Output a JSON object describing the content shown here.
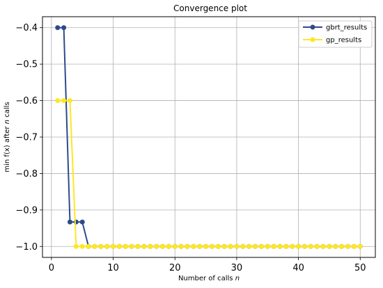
{
  "chart_data": {
    "type": "line",
    "title": "Convergence plot",
    "xlabel_prefix": "Number of calls ",
    "xlabel_italic": "n",
    "ylabel_prefix": "min f(x) after ",
    "ylabel_italic": "n",
    "ylabel_suffix": " calls",
    "xlim": [
      -1.45,
      52.45
    ],
    "ylim": [
      -1.03,
      -0.37
    ],
    "xticks": [
      0,
      10,
      20,
      30,
      40,
      50
    ],
    "xtick_labels": [
      "0",
      "10",
      "20",
      "30",
      "40",
      "50"
    ],
    "yticks": [
      -1.0,
      -0.9,
      -0.8,
      -0.7,
      -0.6,
      -0.5,
      -0.4
    ],
    "ytick_labels": [
      "−1.0",
      "−0.9",
      "−0.8",
      "−0.7",
      "−0.6",
      "−0.5",
      "−0.4"
    ],
    "grid": true,
    "legend_position": "top-right",
    "series": [
      {
        "name": "gbrt_results",
        "color": "#2f4a8a",
        "x": [
          1,
          2,
          3,
          4,
          5,
          6,
          7,
          8,
          9,
          10,
          11,
          12,
          13,
          14,
          15,
          16,
          17,
          18,
          19,
          20,
          21,
          22,
          23,
          24,
          25,
          26,
          27,
          28,
          29,
          30,
          31,
          32,
          33,
          34,
          35,
          36,
          37,
          38,
          39,
          40,
          41,
          42,
          43,
          44,
          45,
          46,
          47,
          48,
          49,
          50
        ],
        "y": [
          -0.4,
          -0.4,
          -0.933,
          -0.933,
          -0.933,
          -1.0,
          -1.0,
          -1.0,
          -1.0,
          -1.0,
          -1.0,
          -1.0,
          -1.0,
          -1.0,
          -1.0,
          -1.0,
          -1.0,
          -1.0,
          -1.0,
          -1.0,
          -1.0,
          -1.0,
          -1.0,
          -1.0,
          -1.0,
          -1.0,
          -1.0,
          -1.0,
          -1.0,
          -1.0,
          -1.0,
          -1.0,
          -1.0,
          -1.0,
          -1.0,
          -1.0,
          -1.0,
          -1.0,
          -1.0,
          -1.0,
          -1.0,
          -1.0,
          -1.0,
          -1.0,
          -1.0,
          -1.0,
          -1.0,
          -1.0,
          -1.0,
          -1.0
        ]
      },
      {
        "name": "gp_results",
        "color": "#fde725",
        "x": [
          1,
          2,
          3,
          4,
          5,
          6,
          7,
          8,
          9,
          10,
          11,
          12,
          13,
          14,
          15,
          16,
          17,
          18,
          19,
          20,
          21,
          22,
          23,
          24,
          25,
          26,
          27,
          28,
          29,
          30,
          31,
          32,
          33,
          34,
          35,
          36,
          37,
          38,
          39,
          40,
          41,
          42,
          43,
          44,
          45,
          46,
          47,
          48,
          49,
          50
        ],
        "y": [
          -0.6,
          -0.6,
          -0.6,
          -1.0,
          -1.0,
          -1.0,
          -1.0,
          -1.0,
          -1.0,
          -1.0,
          -1.0,
          -1.0,
          -1.0,
          -1.0,
          -1.0,
          -1.0,
          -1.0,
          -1.0,
          -1.0,
          -1.0,
          -1.0,
          -1.0,
          -1.0,
          -1.0,
          -1.0,
          -1.0,
          -1.0,
          -1.0,
          -1.0,
          -1.0,
          -1.0,
          -1.0,
          -1.0,
          -1.0,
          -1.0,
          -1.0,
          -1.0,
          -1.0,
          -1.0,
          -1.0,
          -1.0,
          -1.0,
          -1.0,
          -1.0,
          -1.0,
          -1.0,
          -1.0,
          -1.0,
          -1.0,
          -1.0
        ]
      }
    ]
  }
}
